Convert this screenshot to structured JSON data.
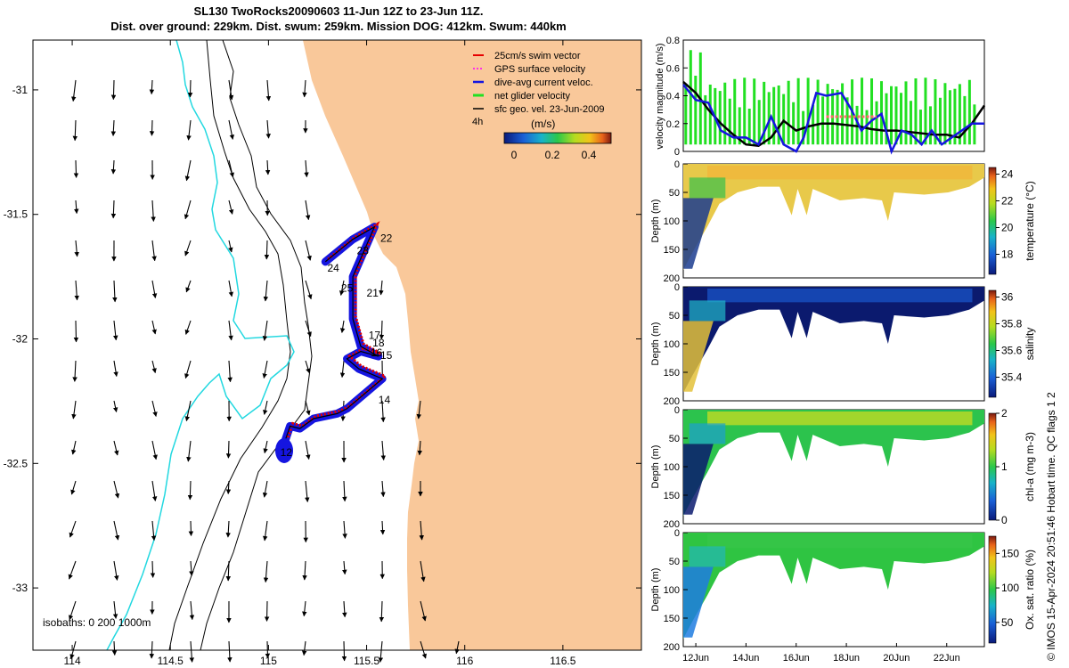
{
  "header": {
    "title_line1": "SL130 TwoRocks20090603 11-Jun 12Z to 23-Jun 11Z.",
    "title_line2": "Dist. over ground: 229km. Dist. swum: 259km. Mission DOG: 412km. Swum: 440km"
  },
  "credit": "© IMOS 15-Apr-2024 20:51:46 Hobart time. QC flags 1  2",
  "colors": {
    "land": "#f9c89a",
    "isobath_cyan": "#22d8e0",
    "swim_vector": "#e60000",
    "gps_velocity": "#ff00ff",
    "dive_avg": "#1515e0",
    "net_glider": "#22e022"
  },
  "chart_data": [
    {
      "type": "map",
      "xlim": [
        113.8,
        116.9
      ],
      "ylim": [
        -33.25,
        -30.8
      ],
      "x_ticks": [
        "114",
        "114.5",
        "115",
        "115.5",
        "116",
        "116.5"
      ],
      "y_ticks": [
        "-31",
        "-31.5",
        "-32",
        "-32.5",
        "-33"
      ],
      "legend": [
        "25cm/s swim vector",
        "GPS surface velocity",
        "dive-avg current veloc.",
        "net glider velocity",
        "sfc geo. vel. 23-Jun-2009"
      ],
      "legend_note": "4h",
      "colorbar": {
        "label": "(m/s)",
        "ticks": [
          "0",
          "0.2",
          "0.4"
        ],
        "range": [
          0,
          0.5
        ]
      },
      "isobaths_label": "isobaths: 0   200   1000m",
      "day_labels": [
        {
          "label": "12",
          "lon": 115.06,
          "lat": -32.47
        },
        {
          "label": "14",
          "lon": 115.56,
          "lat": -32.26
        },
        {
          "label": "15",
          "lon": 115.57,
          "lat": -32.08
        },
        {
          "label": "16",
          "lon": 115.52,
          "lat": -32.07
        },
        {
          "label": "18",
          "lon": 115.53,
          "lat": -32.03
        },
        {
          "label": "17",
          "lon": 115.51,
          "lat": -32.0
        },
        {
          "label": "21",
          "lon": 115.5,
          "lat": -31.83
        },
        {
          "label": "22",
          "lon": 115.57,
          "lat": -31.61
        },
        {
          "label": "23",
          "lon": 115.45,
          "lat": -31.66
        },
        {
          "label": "24",
          "lon": 115.3,
          "lat": -31.73
        },
        {
          "label": "25",
          "lon": 115.37,
          "lat": -31.81
        }
      ],
      "track": [
        [
          115.08,
          -32.42
        ],
        [
          115.11,
          -32.35
        ],
        [
          115.16,
          -32.36
        ],
        [
          115.23,
          -32.32
        ],
        [
          115.35,
          -32.3
        ],
        [
          115.4,
          -32.28
        ],
        [
          115.58,
          -32.16
        ],
        [
          115.46,
          -32.12
        ],
        [
          115.4,
          -32.08
        ],
        [
          115.47,
          -32.05
        ],
        [
          115.56,
          -32.07
        ],
        [
          115.47,
          -32.03
        ],
        [
          115.43,
          -31.92
        ],
        [
          115.43,
          -31.75
        ],
        [
          115.54,
          -31.55
        ],
        [
          115.43,
          -31.6
        ],
        [
          115.29,
          -31.69
        ]
      ]
    },
    {
      "type": "line",
      "ylabel": "velocity magnitude (m/s)",
      "ylim": [
        0,
        0.8
      ],
      "y_ticks": [
        "0",
        "0.2",
        "0.4",
        "0.6",
        "0.8"
      ],
      "xlim": [
        11.5,
        23.5
      ],
      "series": [
        {
          "color": "#000000",
          "x": [
            11.5,
            12.0,
            12.5,
            13.0,
            13.5,
            14.0,
            14.5,
            15.0,
            15.5,
            16.0,
            16.5,
            17.0,
            17.5,
            18.0,
            18.5,
            19.0,
            19.5,
            20.0,
            20.5,
            21.0,
            21.5,
            22.0,
            22.5,
            23.0,
            23.5
          ],
          "values": [
            0.5,
            0.42,
            0.3,
            0.2,
            0.12,
            0.05,
            0.04,
            0.1,
            0.22,
            0.15,
            0.18,
            0.2,
            0.2,
            0.19,
            0.18,
            0.16,
            0.15,
            0.15,
            0.14,
            0.13,
            0.12,
            0.12,
            0.1,
            0.2,
            0.33
          ]
        },
        {
          "color": "#1515e0",
          "x": [
            11.5,
            12.0,
            12.5,
            13.0,
            13.5,
            14.0,
            14.5,
            15.0,
            15.5,
            16.0,
            16.3,
            16.8,
            17.2,
            17.8,
            18.2,
            18.6,
            19.0,
            19.4,
            19.8,
            20.2,
            20.6,
            21.0,
            21.4,
            21.8,
            22.2,
            22.6,
            23.0,
            23.5
          ],
          "values": [
            0.48,
            0.37,
            0.35,
            0.15,
            0.1,
            0.1,
            0.05,
            0.25,
            0.05,
            0.0,
            0.1,
            0.42,
            0.4,
            0.42,
            0.3,
            0.15,
            0.22,
            0.27,
            0.0,
            0.15,
            0.12,
            0.05,
            0.15,
            0.05,
            0.1,
            0.15,
            0.2,
            0.2
          ]
        },
        {
          "color": "#ff6b6b",
          "x": [
            17.2,
            19.2
          ],
          "values": [
            0.25,
            0.25
          ]
        }
      ]
    },
    {
      "type": "heatmap",
      "ylabel": "Depth (m)",
      "ylim": [
        200,
        0
      ],
      "y_ticks": [
        "0",
        "50",
        "100",
        "150",
        "200"
      ],
      "colorbar_label": "temperature (°C)",
      "colorbar_ticks": [
        "24",
        "22",
        "20",
        "18"
      ],
      "colorbar_range": [
        16.5,
        24.5
      ]
    },
    {
      "type": "heatmap",
      "ylabel": "Depth (m)",
      "ylim": [
        200,
        0
      ],
      "y_ticks": [
        "0",
        "50",
        "100",
        "150",
        "200"
      ],
      "colorbar_label": "salinity",
      "colorbar_ticks": [
        "36",
        "35.8",
        "35.6",
        "35.4"
      ],
      "colorbar_range": [
        35.25,
        36.05
      ]
    },
    {
      "type": "heatmap",
      "ylabel": "Depth (m)",
      "ylim": [
        200,
        0
      ],
      "y_ticks": [
        "0",
        "50",
        "100",
        "150",
        "200"
      ],
      "colorbar_label": "chl-a (mg m-3)",
      "colorbar_ticks": [
        "2",
        "1",
        "0"
      ],
      "colorbar_range": [
        0,
        2
      ]
    },
    {
      "type": "heatmap",
      "ylabel": "Depth (m)",
      "ylim": [
        200,
        0
      ],
      "y_ticks": [
        "0",
        "50",
        "100",
        "150",
        "200"
      ],
      "x_ticks": [
        "12Jun",
        "14Jun",
        "16Jun",
        "18Jun",
        "20Jun",
        "22Jun"
      ],
      "colorbar_label": "Ox. sat. ratio (%)",
      "colorbar_ticks": [
        "150",
        "100",
        "50"
      ],
      "colorbar_range": [
        20,
        175
      ]
    }
  ]
}
